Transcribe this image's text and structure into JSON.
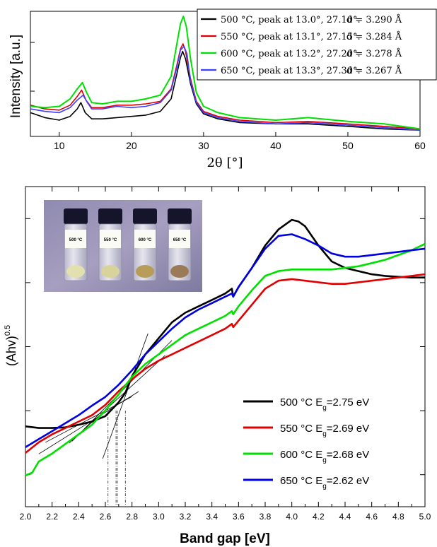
{
  "chart_data": [
    {
      "type": "line",
      "panel": "xrd",
      "xlabel": "2θ [°]",
      "ylabel": "Intensity [a.u.]",
      "xlim": [
        6,
        60
      ],
      "ylim": [
        0,
        1
      ],
      "x_ticks": [
        "10",
        "20",
        "30",
        "40",
        "50",
        "60"
      ],
      "grid": false,
      "legend_position": "top-right",
      "series": [
        {
          "name": "500 °C, peak at 13.0°, 27.10°.",
          "d_label": "d = 3.290 Å",
          "color": "#000000",
          "x": [
            6,
            8,
            10,
            11.5,
            12.5,
            13.0,
            13.6,
            14.5,
            16,
            18,
            20,
            22,
            24,
            25.5,
            26.3,
            26.8,
            27.1,
            27.5,
            28.2,
            29,
            30,
            32,
            35,
            40,
            44.5,
            50,
            55,
            60
          ],
          "y": [
            0.19,
            0.15,
            0.13,
            0.16,
            0.22,
            0.27,
            0.19,
            0.14,
            0.14,
            0.15,
            0.16,
            0.17,
            0.2,
            0.3,
            0.5,
            0.63,
            0.68,
            0.62,
            0.42,
            0.26,
            0.18,
            0.14,
            0.11,
            0.1,
            0.1,
            0.08,
            0.06,
            0.05
          ]
        },
        {
          "name": "550 °C, peak at 13.1°, 27.15°.",
          "d_label": "d = 3.284 Å",
          "color": "#e00000",
          "x": [
            6,
            8,
            10,
            11.5,
            12.5,
            13.1,
            13.7,
            14.5,
            16,
            18,
            20,
            22,
            24,
            25.5,
            26.3,
            26.8,
            27.15,
            27.5,
            28.2,
            29,
            30,
            32,
            35,
            40,
            44.5,
            50,
            55,
            60
          ],
          "y": [
            0.25,
            0.22,
            0.21,
            0.25,
            0.32,
            0.37,
            0.29,
            0.23,
            0.23,
            0.25,
            0.25,
            0.26,
            0.28,
            0.38,
            0.57,
            0.7,
            0.74,
            0.68,
            0.46,
            0.28,
            0.2,
            0.16,
            0.13,
            0.11,
            0.12,
            0.1,
            0.08,
            0.06
          ]
        },
        {
          "name": "600 °C, peak at 13.2°, 27.20°.",
          "d_label": "d = 3.278 Å",
          "color": "#00e000",
          "x": [
            6,
            8,
            10,
            11.5,
            12.5,
            13.2,
            13.8,
            14.5,
            16,
            18,
            20,
            22,
            24,
            25.5,
            26.3,
            26.8,
            27.2,
            27.6,
            28.2,
            29,
            30,
            32,
            35,
            40,
            44.5,
            50,
            55,
            60
          ],
          "y": [
            0.24,
            0.23,
            0.24,
            0.3,
            0.38,
            0.43,
            0.35,
            0.27,
            0.26,
            0.28,
            0.28,
            0.3,
            0.33,
            0.48,
            0.74,
            0.9,
            0.96,
            0.88,
            0.62,
            0.35,
            0.24,
            0.19,
            0.15,
            0.13,
            0.15,
            0.12,
            0.1,
            0.06
          ]
        },
        {
          "name": "650 °C, peak at 13.3°, 27.30°.",
          "d_label": "d = 3.267 Å",
          "color": "#3f3fff",
          "x": [
            6,
            8,
            10,
            11.5,
            12.5,
            13.3,
            13.9,
            14.5,
            16,
            18,
            20,
            22,
            24,
            25.5,
            26.3,
            26.8,
            27.3,
            27.7,
            28.2,
            29,
            30,
            32,
            35,
            40,
            44.5,
            50,
            55,
            60
          ],
          "y": [
            0.22,
            0.2,
            0.19,
            0.23,
            0.29,
            0.33,
            0.27,
            0.22,
            0.22,
            0.24,
            0.23,
            0.24,
            0.27,
            0.37,
            0.55,
            0.69,
            0.72,
            0.66,
            0.44,
            0.27,
            0.19,
            0.15,
            0.12,
            0.1,
            0.11,
            0.09,
            0.07,
            0.05
          ]
        }
      ]
    },
    {
      "type": "line",
      "panel": "tauc",
      "xlabel": "Band gap [eV]",
      "ylabel": "(Ahv)",
      "ylabel_sup": "0.5",
      "xlim": [
        2.0,
        5.0
      ],
      "ylim": [
        0,
        1
      ],
      "x_ticks": [
        "2.0",
        "2.2",
        "2.4",
        "2.6",
        "2.8",
        "3.0",
        "3.2",
        "3.4",
        "3.6",
        "3.8",
        "4.0",
        "4.2",
        "4.4",
        "4.6",
        "4.8",
        "5.0"
      ],
      "grid": false,
      "legend_position": "bottom-right",
      "inset": {
        "vial_labels": [
          "500 °C",
          "550 °C",
          "600 °C",
          "650 °C"
        ]
      },
      "series": [
        {
          "name": "500 °C",
          "eg_label": "=2.75 eV",
          "eg_value": 2.75,
          "color": "#000000",
          "x": [
            2.0,
            2.1,
            2.2,
            2.3,
            2.4,
            2.5,
            2.6,
            2.7,
            2.75,
            2.8,
            2.9,
            3.0,
            3.1,
            3.2,
            3.3,
            3.4,
            3.5,
            3.55,
            3.56,
            3.6,
            3.7,
            3.8,
            3.9,
            4.0,
            4.05,
            4.1,
            4.2,
            4.3,
            4.4,
            4.5,
            4.6,
            4.7,
            4.8,
            4.9,
            5.0
          ],
          "y": [
            0.251,
            0.246,
            0.246,
            0.248,
            0.256,
            0.266,
            0.283,
            0.326,
            0.356,
            0.408,
            0.476,
            0.526,
            0.576,
            0.606,
            0.626,
            0.646,
            0.666,
            0.681,
            0.656,
            0.686,
            0.746,
            0.816,
            0.866,
            0.896,
            0.891,
            0.876,
            0.816,
            0.766,
            0.746,
            0.736,
            0.726,
            0.721,
            0.718,
            0.716,
            0.716
          ]
        },
        {
          "name": "550 °C",
          "eg_label": "=2.69 eV",
          "eg_value": 2.69,
          "color": "#e00000",
          "x": [
            2.0,
            2.1,
            2.2,
            2.3,
            2.4,
            2.5,
            2.6,
            2.7,
            2.8,
            2.9,
            3.0,
            3.1,
            3.2,
            3.3,
            3.4,
            3.5,
            3.55,
            3.56,
            3.6,
            3.7,
            3.8,
            3.9,
            4.0,
            4.1,
            4.2,
            4.3,
            4.4,
            4.5,
            4.6,
            4.7,
            4.8,
            4.9,
            5.0
          ],
          "y": [
            0.168,
            0.201,
            0.226,
            0.246,
            0.266,
            0.286,
            0.318,
            0.361,
            0.398,
            0.431,
            0.456,
            0.476,
            0.496,
            0.516,
            0.536,
            0.556,
            0.571,
            0.561,
            0.581,
            0.631,
            0.681,
            0.706,
            0.711,
            0.706,
            0.701,
            0.696,
            0.696,
            0.701,
            0.706,
            0.711,
            0.716,
            0.721,
            0.726
          ]
        },
        {
          "name": "600 °C",
          "eg_label": "=2.68 eV",
          "eg_value": 2.68,
          "color": "#00e000",
          "x": [
            2.0,
            2.05,
            2.1,
            2.2,
            2.3,
            2.4,
            2.5,
            2.6,
            2.7,
            2.8,
            2.9,
            3.0,
            3.1,
            3.2,
            3.3,
            3.4,
            3.5,
            3.55,
            3.56,
            3.6,
            3.7,
            3.8,
            3.9,
            4.0,
            4.1,
            4.2,
            4.3,
            4.4,
            4.5,
            4.6,
            4.7,
            4.8,
            4.9,
            5.0
          ],
          "y": [
            0.098,
            0.106,
            0.141,
            0.166,
            0.196,
            0.226,
            0.256,
            0.301,
            0.351,
            0.406,
            0.446,
            0.476,
            0.506,
            0.536,
            0.556,
            0.576,
            0.596,
            0.611,
            0.601,
            0.626,
            0.676,
            0.721,
            0.736,
            0.741,
            0.741,
            0.741,
            0.741,
            0.746,
            0.751,
            0.761,
            0.771,
            0.786,
            0.801,
            0.821
          ]
        },
        {
          "name": "650 °C",
          "eg_label": "=2.62 eV",
          "eg_value": 2.62,
          "color": "#0000e0",
          "x": [
            2.0,
            2.1,
            2.2,
            2.3,
            2.4,
            2.5,
            2.6,
            2.7,
            2.8,
            2.9,
            3.0,
            3.1,
            3.2,
            3.3,
            3.4,
            3.5,
            3.55,
            3.56,
            3.6,
            3.7,
            3.8,
            3.9,
            4.0,
            4.1,
            4.2,
            4.3,
            4.4,
            4.5,
            4.6,
            4.7,
            4.8,
            4.9,
            5.0
          ],
          "y": [
            0.186,
            0.211,
            0.236,
            0.261,
            0.286,
            0.316,
            0.343,
            0.381,
            0.426,
            0.476,
            0.516,
            0.556,
            0.591,
            0.616,
            0.636,
            0.656,
            0.666,
            0.656,
            0.686,
            0.746,
            0.806,
            0.846,
            0.851,
            0.836,
            0.816,
            0.791,
            0.781,
            0.781,
            0.786,
            0.791,
            0.796,
            0.801,
            0.806
          ]
        }
      ]
    }
  ]
}
